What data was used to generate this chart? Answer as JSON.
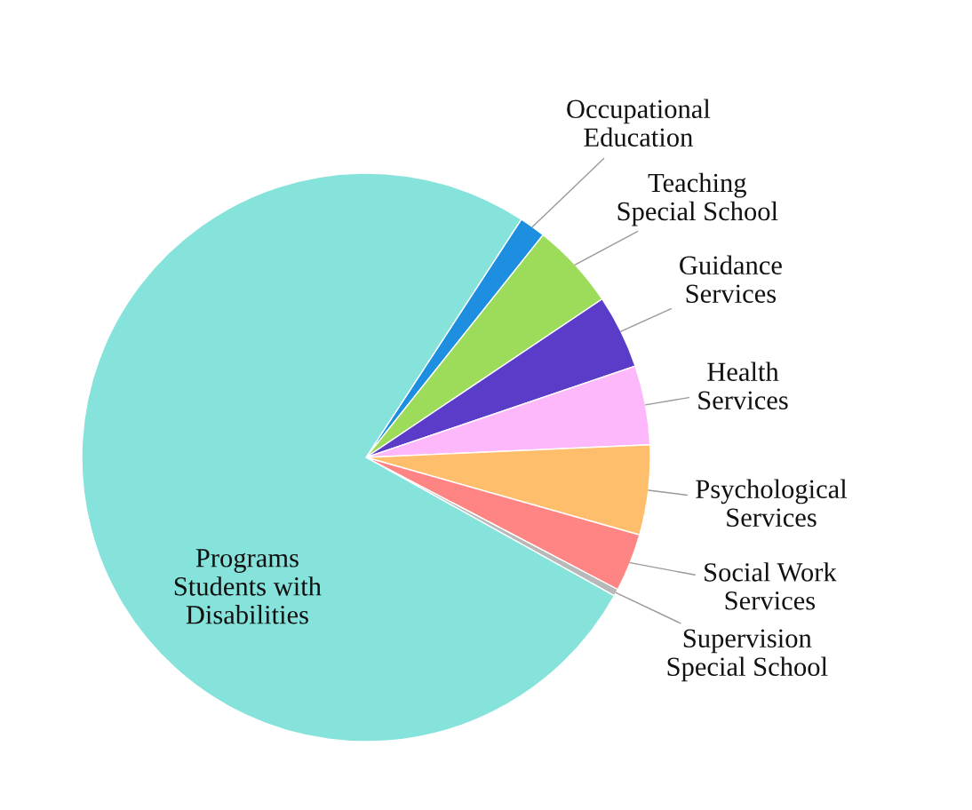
{
  "chart_data": {
    "type": "pie",
    "categories": [
      "Occupational\nEducation",
      "Teaching\nSpecial School",
      "Guidance\nServices",
      "Health\nServices",
      "Psychological\nServices",
      "Social Work\nServices",
      "Supervision\nSpecial School",
      "Programs\nStudents with\nDisabilities"
    ],
    "values": [
      1.5,
      4.9,
      4.2,
      4.5,
      5.1,
      3.3,
      0.4,
      76.1
    ],
    "colors": [
      "#1e8fe0",
      "#9cdc5a",
      "#5b3cc8",
      "#fdb8fc",
      "#ffbe6c",
      "#ff8585",
      "#b8b8b8",
      "#86e3dc"
    ],
    "legend": false
  }
}
